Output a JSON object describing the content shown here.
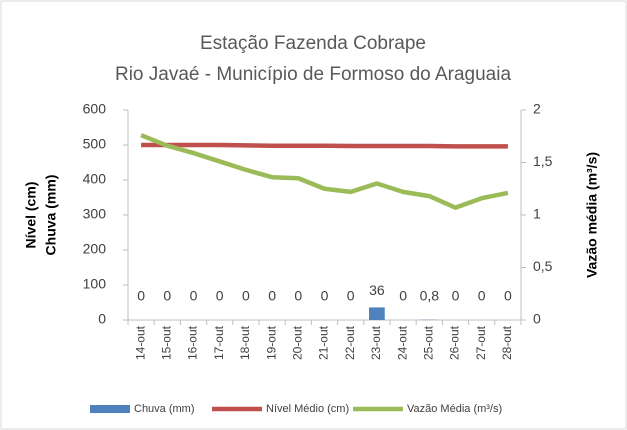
{
  "chart_data": {
    "type": "bar",
    "title": [
      "Estação Fazenda Cobrape",
      "Rio Javaé - Município de Formoso do Araguaia"
    ],
    "y_label": [
      "Nível (cm)",
      "Chuva (mm)"
    ],
    "y2_label": "Vazão média (m³/s)",
    "categories": [
      "14-out",
      "15-out",
      "16-out",
      "17-out",
      "18-out",
      "19-out",
      "20-out",
      "21-out",
      "22-out",
      "23-out",
      "24-out",
      "25-out",
      "26-out",
      "27-out",
      "28-out"
    ],
    "series": [
      {
        "name": "Chuva (mm)",
        "type": "bar",
        "color": "#4f81bd",
        "values": [
          0,
          0,
          0,
          0,
          0,
          0,
          0,
          0,
          0,
          36,
          0,
          0.8,
          0,
          0,
          0
        ],
        "value_labels": [
          "0",
          "0",
          "0",
          "0",
          "0",
          "0",
          "0",
          "0",
          "0",
          "36",
          "0",
          "0,8",
          "0",
          "0",
          "0"
        ]
      },
      {
        "name": "Nível Médio (cm)",
        "type": "line",
        "color": "#c0504d",
        "values": [
          500,
          500,
          500,
          500,
          499,
          498,
          498,
          498,
          497,
          497,
          497,
          497,
          496,
          496,
          496
        ]
      },
      {
        "name": "Vazão Média (m³/s)",
        "type": "line",
        "axis": "y2",
        "color": "#9bbb59",
        "values": [
          1.76,
          1.66,
          1.59,
          1.51,
          1.43,
          1.36,
          1.35,
          1.25,
          1.22,
          1.3,
          1.22,
          1.18,
          1.07,
          1.16,
          1.21
        ]
      }
    ],
    "ylim": [
      0,
      600
    ],
    "yticks": [
      0,
      100,
      200,
      300,
      400,
      500,
      600
    ],
    "y2lim": [
      0,
      2
    ],
    "y2ticks": [
      0,
      {
        "value": 0.5,
        "label": "0,5"
      },
      1,
      {
        "value": 1.5,
        "label": "1,5"
      },
      2
    ],
    "grid": false,
    "legend": "bottom"
  }
}
